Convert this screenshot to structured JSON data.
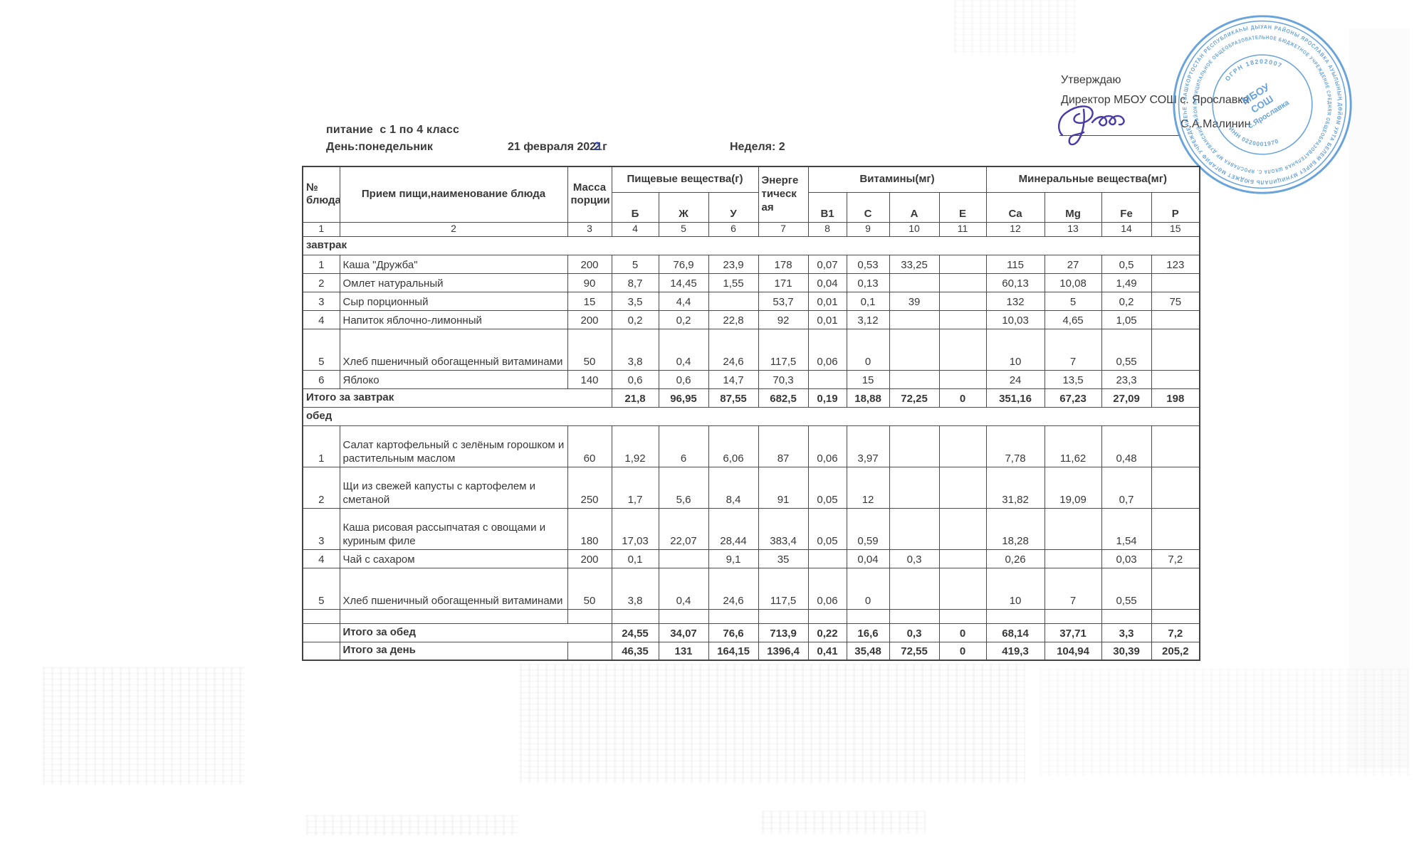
{
  "approval": {
    "line1": "Утверждаю",
    "line2": "Директор МБОУ СОШ с. Ярославка",
    "name": "С.А.Малинин"
  },
  "stamp": {
    "color": "#4f93d5",
    "ring_outer": "• БАШКОРТОСТАН РЕСПУБЛИКАҺЫ ДЫУАН РАЙОНЫ ЯРОСЛАВКА АУЫЛЫНЫҢ ДӨЙӨМ УРТА БЕЛЕМ БИРЕҮ МУНИЦИПАЛЬ БЮДЖЕТ МӘГАРИФ УЧРЕЖДЕНИЕҺЕ",
    "ring_middle": "МУНИЦИПАЛЬНОЕ ОБЩЕОБРАЗОВАТЕЛЬНОЕ БЮДЖЕТНОЕ УЧРЕЖДЕНИЕ СРЕДНЯЯ ОБЩЕОБРАЗОВАТЕЛЬНАЯ ШКОЛА С. ЯРОСЛАВКА МР ДУВАНСКИЙ РАЙОН",
    "ogrn": "ОГРН 18202007",
    "inn": "ИНН 0220001970",
    "center_line1": "МБОУ",
    "center_line2": "СОШ",
    "center_line3": "с.Ярославка"
  },
  "header": {
    "title": "питание  с 1 по 4 класс",
    "day_label": "День:понедельник",
    "date_prefix": "21 февраля 202",
    "date_printed_digit": "1",
    "date_overwrite_digit": "2",
    "date_suffix": "г",
    "week": "Неделя: 2"
  },
  "table": {
    "headers": {
      "num": "№\nблюда",
      "dish": "Прием пищи,наименование блюда",
      "mass": "Масса\nпорции",
      "nutrients": "Пищевые вещества(г)",
      "energy": "Энерге\nтическ\nая",
      "vitamins": "Витамины(мг)",
      "minerals": "Минеральные вещества(мг)",
      "sub": [
        "Б",
        "Ж",
        "У",
        "В1",
        "С",
        "А",
        "Е",
        "Ca",
        "Mg",
        "Fe",
        "P"
      ]
    },
    "index": [
      "1",
      "2",
      "3",
      "4",
      "5",
      "6",
      "7",
      "8",
      "9",
      "10",
      "11",
      "12",
      "13",
      "14",
      "15"
    ],
    "body": [
      {
        "type": "section",
        "label": "завтрак"
      },
      {
        "type": "dish",
        "num": "1",
        "name": "Каша \"Дружба\"",
        "tall": false,
        "values": [
          "200",
          "5",
          "76,9",
          "23,9",
          "178",
          "0,07",
          "0,53",
          "33,25",
          "",
          "115",
          "27",
          "0,5",
          "123"
        ]
      },
      {
        "type": "dish",
        "num": "2",
        "name": "Омлет натуральный",
        "tall": false,
        "values": [
          "90",
          "8,7",
          "14,45",
          "1,55",
          "171",
          "0,04",
          "0,13",
          "",
          "",
          "60,13",
          "10,08",
          "1,49",
          ""
        ]
      },
      {
        "type": "dish",
        "num": "3",
        "name": "Сыр порционный",
        "tall": false,
        "values": [
          "15",
          "3,5",
          "4,4",
          "",
          "53,7",
          "0,01",
          "0,1",
          "39",
          "",
          "132",
          "5",
          "0,2",
          "75"
        ]
      },
      {
        "type": "dish",
        "num": "4",
        "name": "Напиток яблочно-лимонный",
        "tall": false,
        "values": [
          "200",
          "0,2",
          "0,2",
          "22,8",
          "92",
          "0,01",
          "3,12",
          "",
          "",
          "10,03",
          "4,65",
          "1,05",
          ""
        ]
      },
      {
        "type": "dish",
        "num": "5",
        "name": "Хлеб пшеничный обогащенный витаминами",
        "tall": true,
        "values": [
          "50",
          "3,8",
          "0,4",
          "24,6",
          "117,5",
          "0,06",
          "0",
          "",
          "",
          "10",
          "7",
          "0,55",
          ""
        ]
      },
      {
        "type": "dish",
        "num": "6",
        "name": "Яблоко",
        "tall": false,
        "values": [
          "140",
          "0,6",
          "0,6",
          "14,7",
          "70,3",
          "",
          "15",
          "",
          "",
          "24",
          "13,5",
          "23,3",
          ""
        ]
      },
      {
        "type": "total",
        "label": "Итого за завтрак",
        "layout": "label-span-3",
        "values": [
          "21,8",
          "96,95",
          "87,55",
          "682,5",
          "0,19",
          "18,88",
          "72,25",
          "0",
          "351,16",
          "67,23",
          "27,09",
          "198"
        ]
      },
      {
        "type": "section",
        "label": "обед"
      },
      {
        "type": "dish",
        "num": "1",
        "name": "Салат картофельный с зелёным горошком и растительным маслом",
        "tall": true,
        "values": [
          "60",
          "1,92",
          "6",
          "6,06",
          "87",
          "0,06",
          "3,97",
          "",
          "",
          "7,78",
          "11,62",
          "0,48",
          ""
        ]
      },
      {
        "type": "dish",
        "num": "2",
        "name": "Щи из свежей капусты с картофелем и сметаной",
        "tall": true,
        "values": [
          "250",
          "1,7",
          "5,6",
          "8,4",
          "91",
          "0,05",
          "12",
          "",
          "",
          "31,82",
          "19,09",
          "0,7",
          ""
        ]
      },
      {
        "type": "dish",
        "num": "3",
        "name": "Каша рисовая рассыпчатая с овощами и куриным филе",
        "tall": true,
        "values": [
          "180",
          "17,03",
          "22,07",
          "28,44",
          "383,4",
          "0,05",
          "0,59",
          "",
          "",
          "18,28",
          "",
          "1,54",
          ""
        ]
      },
      {
        "type": "dish",
        "num": "4",
        "name": "Чай с сахаром",
        "tall": false,
        "values": [
          "200",
          "0,1",
          "",
          "9,1",
          "35",
          "",
          "0,04",
          "0,3",
          "",
          "0,26",
          "",
          "0,03",
          "7,2"
        ]
      },
      {
        "type": "dish",
        "num": "5",
        "name": "Хлеб пшеничный обогащенный витаминами",
        "tall": true,
        "values": [
          "50",
          "3,8",
          "0,4",
          "24,6",
          "117,5",
          "0,06",
          "0",
          "",
          "",
          "10",
          "7",
          "0,55",
          ""
        ]
      },
      {
        "type": "blank"
      },
      {
        "type": "total",
        "label": "Итого за обед",
        "layout": "gap-label-span-2",
        "values": [
          "24,55",
          "34,07",
          "76,6",
          "713,9",
          "0,22",
          "16,6",
          "0,3",
          "0",
          "68,14",
          "37,71",
          "3,3",
          "7,2"
        ]
      },
      {
        "type": "total",
        "label": "Итого за день",
        "layout": "gap-label-gap",
        "values": [
          "46,35",
          "131",
          "164,15",
          "1396,4",
          "0,41",
          "35,48",
          "72,55",
          "0",
          "419,3",
          "104,94",
          "30,39",
          "205,2"
        ]
      }
    ]
  }
}
